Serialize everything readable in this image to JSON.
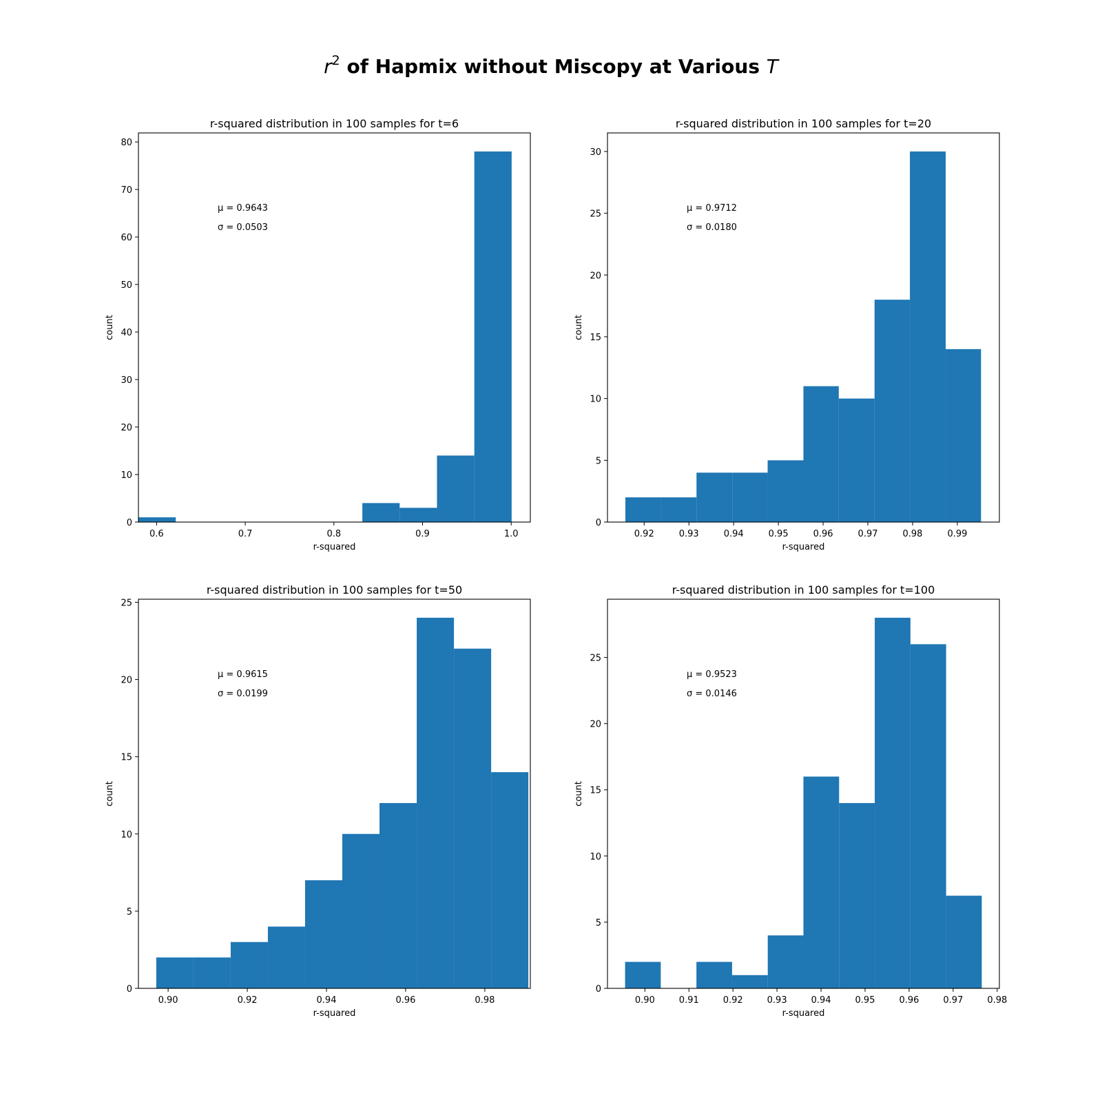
{
  "figure": {
    "title_var": "r",
    "title_sup": "2",
    "title_main": " of Hapmix without Miscopy at Various ",
    "title_t": "T"
  },
  "chart_data": [
    {
      "type": "bar",
      "title": "r-squared distribution in 100 samples for t=6",
      "xlabel": "r-squared",
      "ylabel": "count",
      "xlim": [
        0.5795,
        1.0216
      ],
      "ylim": [
        0,
        81.9
      ],
      "xticks": [
        0.6,
        0.7,
        0.8,
        0.9,
        1.0
      ],
      "xtick_labels": [
        "0.6",
        "0.7",
        "0.8",
        "0.9",
        "1.0"
      ],
      "yticks": [
        0,
        10,
        20,
        30,
        40,
        50,
        60,
        70,
        80
      ],
      "bin_edges": [
        0.5795,
        0.6216,
        0.6637,
        0.7058,
        0.7479,
        0.79,
        0.8321,
        0.8742,
        0.9163,
        0.9584,
        1.0005
      ],
      "values": [
        1,
        0,
        0,
        0,
        0,
        0,
        4,
        3,
        14,
        78
      ],
      "annotations": [
        "μ = 0.9643",
        "σ = 0.0503"
      ],
      "grid": false
    },
    {
      "type": "bar",
      "title": "r-squared distribution in 100 samples for t=20",
      "xlabel": "r-squared",
      "ylabel": "count",
      "xlim": [
        0.9118,
        0.9994
      ],
      "ylim": [
        0,
        31.5
      ],
      "xticks": [
        0.92,
        0.93,
        0.94,
        0.95,
        0.96,
        0.97,
        0.98,
        0.99
      ],
      "xtick_labels": [
        "0.92",
        "0.93",
        "0.94",
        "0.95",
        "0.96",
        "0.97",
        "0.98",
        "0.99"
      ],
      "yticks": [
        0,
        5,
        10,
        15,
        20,
        25,
        30
      ],
      "bin_edges": [
        0.9158,
        0.9238,
        0.9317,
        0.9397,
        0.9476,
        0.9556,
        0.9635,
        0.9715,
        0.9794,
        0.9874,
        0.9953
      ],
      "values": [
        2,
        2,
        4,
        4,
        5,
        11,
        10,
        18,
        30,
        14
      ],
      "annotations": [
        "μ = 0.9712",
        "σ = 0.0180"
      ],
      "grid": false
    },
    {
      "type": "bar",
      "title": "r-squared distribution in 100 samples for t=50",
      "xlabel": "r-squared",
      "ylabel": "count",
      "xlim": [
        0.8925,
        0.9915
      ],
      "ylim": [
        0,
        25.2
      ],
      "xticks": [
        0.9,
        0.92,
        0.94,
        0.96,
        0.98
      ],
      "xtick_labels": [
        "0.90",
        "0.92",
        "0.94",
        "0.96",
        "0.98"
      ],
      "yticks": [
        0,
        5,
        10,
        15,
        20,
        25
      ],
      "bin_edges": [
        0.897,
        0.9064,
        0.9158,
        0.9252,
        0.9346,
        0.944,
        0.9534,
        0.9628,
        0.9722,
        0.9816,
        0.991
      ],
      "values": [
        2,
        2,
        3,
        4,
        7,
        10,
        12,
        24,
        22,
        14
      ],
      "annotations": [
        "μ = 0.9615",
        "σ = 0.0199"
      ],
      "grid": false
    },
    {
      "type": "bar",
      "title": "r-squared distribution in 100 samples for t=100",
      "xlabel": "r-squared",
      "ylabel": "count",
      "xlim": [
        0.8915,
        0.9805
      ],
      "ylim": [
        0,
        29.4
      ],
      "xticks": [
        0.9,
        0.91,
        0.92,
        0.93,
        0.94,
        0.95,
        0.96,
        0.97,
        0.98
      ],
      "xtick_labels": [
        "0.90",
        "0.91",
        "0.92",
        "0.93",
        "0.94",
        "0.95",
        "0.96",
        "0.97",
        "0.98"
      ],
      "yticks": [
        0,
        5,
        10,
        15,
        20,
        25
      ],
      "bin_edges": [
        0.8955,
        0.9036,
        0.9117,
        0.9198,
        0.9279,
        0.936,
        0.9441,
        0.9522,
        0.9603,
        0.9684,
        0.9765
      ],
      "values": [
        2,
        0,
        2,
        1,
        4,
        16,
        14,
        28,
        26,
        7
      ],
      "annotations": [
        "μ = 0.9523",
        "σ = 0.0146"
      ],
      "grid": false
    }
  ],
  "colors": {
    "bar": "#1f77b4",
    "axes": "#000000",
    "background": "#ffffff"
  }
}
